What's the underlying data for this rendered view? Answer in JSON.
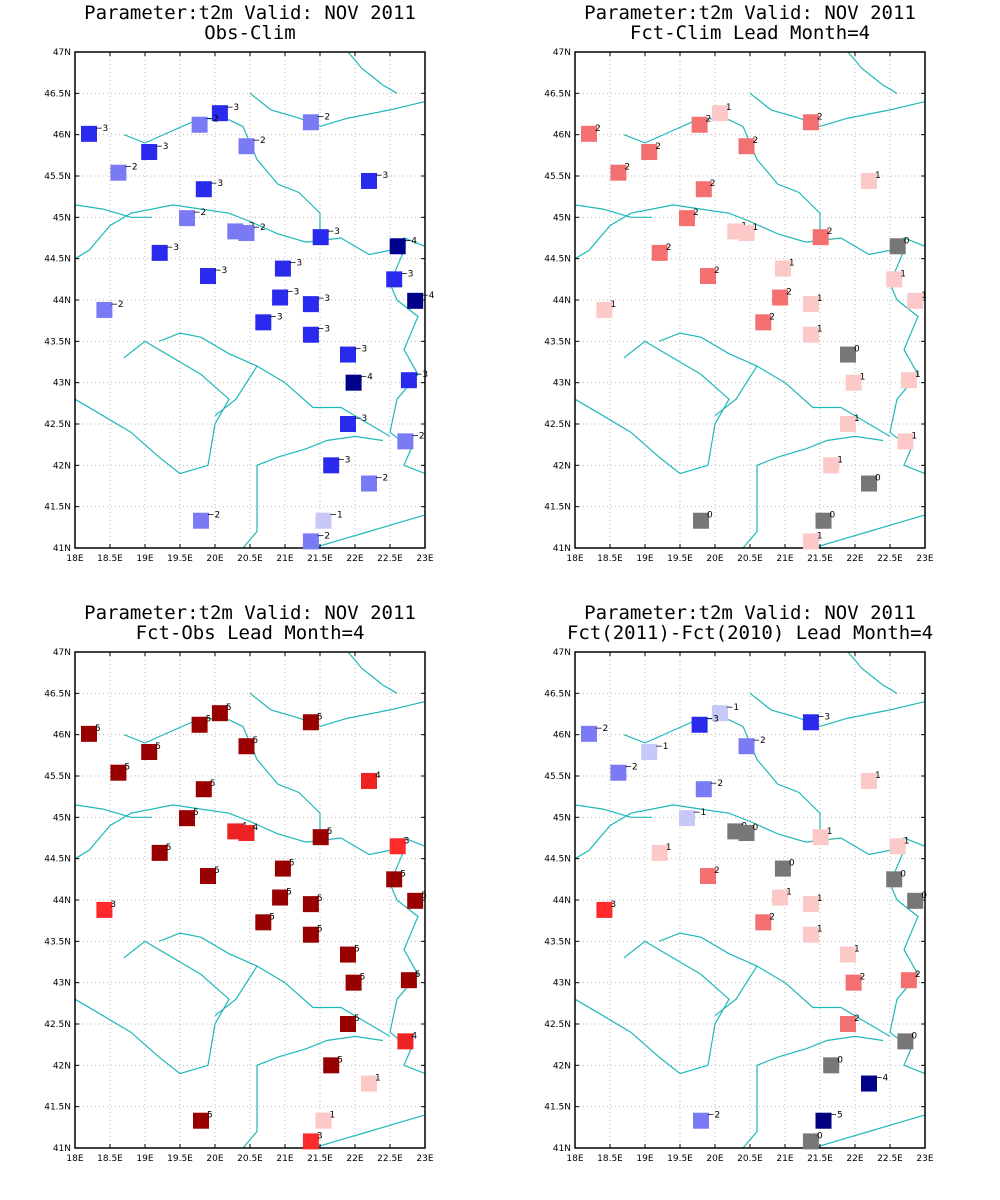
{
  "colors": {
    "coast": "#20b8b8",
    "grid": "#bbbbbb",
    "frame": "#000000"
  },
  "color_scale": {
    "-5": "#000080",
    "-4": "#00008b",
    "-3": "#2a2aee",
    "-2": "#7a7af5",
    "-1": "#c8c8f8",
    "0": "#777777",
    "1": "#fcc8c8",
    "2": "#f47070",
    "3": "#ff2a2a",
    "4": "#ee2222",
    "5": "#990000"
  },
  "stations": [
    {
      "lon": 18.2,
      "lat": 46.01
    },
    {
      "lon": 20.07,
      "lat": 46.26
    },
    {
      "lon": 19.78,
      "lat": 46.12
    },
    {
      "lon": 21.37,
      "lat": 46.15
    },
    {
      "lon": 19.06,
      "lat": 45.79
    },
    {
      "lon": 20.45,
      "lat": 45.86
    },
    {
      "lon": 18.62,
      "lat": 45.54
    },
    {
      "lon": 19.84,
      "lat": 45.34
    },
    {
      "lon": 22.2,
      "lat": 45.44
    },
    {
      "lon": 19.6,
      "lat": 44.99
    },
    {
      "lon": 20.29,
      "lat": 44.83
    },
    {
      "lon": 20.45,
      "lat": 44.81
    },
    {
      "lon": 21.51,
      "lat": 44.76
    },
    {
      "lon": 22.61,
      "lat": 44.65
    },
    {
      "lon": 19.21,
      "lat": 44.57
    },
    {
      "lon": 20.97,
      "lat": 44.38
    },
    {
      "lon": 19.9,
      "lat": 44.29
    },
    {
      "lon": 22.56,
      "lat": 44.25
    },
    {
      "lon": 20.93,
      "lat": 44.03
    },
    {
      "lon": 21.37,
      "lat": 43.95
    },
    {
      "lon": 22.86,
      "lat": 43.99
    },
    {
      "lon": 18.42,
      "lat": 43.88
    },
    {
      "lon": 20.69,
      "lat": 43.73
    },
    {
      "lon": 21.37,
      "lat": 43.58
    },
    {
      "lon": 21.9,
      "lat": 43.34
    },
    {
      "lon": 21.98,
      "lat": 43.0
    },
    {
      "lon": 22.77,
      "lat": 43.03
    },
    {
      "lon": 21.9,
      "lat": 42.5
    },
    {
      "lon": 22.72,
      "lat": 42.29
    },
    {
      "lon": 21.66,
      "lat": 42.0
    },
    {
      "lon": 22.2,
      "lat": 41.78
    },
    {
      "lon": 19.8,
      "lat": 41.33
    },
    {
      "lon": 21.55,
      "lat": 41.33
    },
    {
      "lon": 21.37,
      "lat": 41.08
    }
  ],
  "panels": [
    {
      "title1": "Parameter:t2m Valid: NOV 2011",
      "title2": "Obs-Clim",
      "chart_data": {
        "type": "scatter",
        "xlim": [
          18,
          23
        ],
        "ylim": [
          41,
          47
        ],
        "x_ticks": [
          "18E",
          "18.5E",
          "19E",
          "19.5E",
          "20E",
          "20.5E",
          "21E",
          "21.5E",
          "22E",
          "22.5E",
          "23E"
        ],
        "y_ticks": [
          "41N",
          "41.5N",
          "42N",
          "42.5N",
          "43N",
          "43.5N",
          "44N",
          "44.5N",
          "45N",
          "45.5N",
          "46N",
          "46.5N",
          "47N"
        ],
        "grid": true,
        "values": [
          -3,
          -3,
          -2,
          -2,
          -3,
          -2,
          -2,
          -3,
          -3,
          -2,
          -2,
          -2,
          -3,
          -4,
          -3,
          -3,
          -3,
          -3,
          -3,
          -3,
          -4,
          -2,
          -3,
          -3,
          -3,
          -4,
          -3,
          -3,
          -2,
          -3,
          -2,
          -2,
          -1,
          -2
        ]
      }
    },
    {
      "title1": "Parameter:t2m Valid: NOV 2011",
      "title2": "Fct-Clim Lead Month=4",
      "chart_data": {
        "type": "scatter",
        "xlim": [
          18,
          23
        ],
        "ylim": [
          41,
          47
        ],
        "x_ticks": [
          "18E",
          "18.5E",
          "19E",
          "19.5E",
          "20E",
          "20.5E",
          "21E",
          "21.5E",
          "22E",
          "22.5E",
          "23E"
        ],
        "y_ticks": [
          "41N",
          "41.5N",
          "42N",
          "42.5N",
          "43N",
          "43.5N",
          "44N",
          "44.5N",
          "45N",
          "45.5N",
          "46N",
          "46.5N",
          "47N"
        ],
        "grid": true,
        "values": [
          2,
          1,
          2,
          2,
          2,
          2,
          2,
          2,
          1,
          2,
          1,
          1,
          2,
          0,
          2,
          1,
          2,
          1,
          2,
          1,
          1,
          1,
          2,
          1,
          0,
          1,
          1,
          1,
          1,
          1,
          0,
          0,
          0,
          1
        ]
      }
    },
    {
      "title1": "Parameter:t2m Valid: NOV 2011",
      "title2": "Fct-Obs Lead Month=4",
      "chart_data": {
        "type": "scatter",
        "xlim": [
          18,
          23
        ],
        "ylim": [
          41,
          47
        ],
        "x_ticks": [
          "18E",
          "18.5E",
          "19E",
          "19.5E",
          "20E",
          "20.5E",
          "21E",
          "21.5E",
          "22E",
          "22.5E",
          "23E"
        ],
        "y_ticks": [
          "41N",
          "41.5N",
          "42N",
          "42.5N",
          "43N",
          "43.5N",
          "44N",
          "44.5N",
          "45N",
          "45.5N",
          "46N",
          "46.5N",
          "47N"
        ],
        "grid": true,
        "values": [
          5,
          5,
          5,
          5,
          5,
          5,
          5,
          5,
          4,
          5,
          4,
          4,
          5,
          3,
          5,
          5,
          5,
          5,
          5,
          5,
          5,
          3,
          5,
          5,
          5,
          5,
          5,
          5,
          4,
          5,
          1,
          5,
          1,
          3
        ]
      }
    },
    {
      "title1": "Parameter:t2m Valid: NOV 2011",
      "title2": "Fct(2011)-Fct(2010) Lead Month=4",
      "chart_data": {
        "type": "scatter",
        "xlim": [
          18,
          23
        ],
        "ylim": [
          41,
          47
        ],
        "x_ticks": [
          "18E",
          "18.5E",
          "19E",
          "19.5E",
          "20E",
          "20.5E",
          "21E",
          "21.5E",
          "22E",
          "22.5E",
          "23E"
        ],
        "y_ticks": [
          "41N",
          "41.5N",
          "42N",
          "42.5N",
          "43N",
          "43.5N",
          "44N",
          "44.5N",
          "45N",
          "45.5N",
          "46N",
          "46.5N",
          "47N"
        ],
        "grid": true,
        "values": [
          -2,
          -1,
          -3,
          -3,
          -1,
          -2,
          -2,
          -2,
          1,
          -1,
          0,
          0,
          1,
          1,
          1,
          0,
          2,
          0,
          1,
          1,
          0,
          3,
          2,
          1,
          1,
          2,
          2,
          2,
          0,
          0,
          -4,
          -2,
          -5,
          0
        ]
      }
    }
  ]
}
